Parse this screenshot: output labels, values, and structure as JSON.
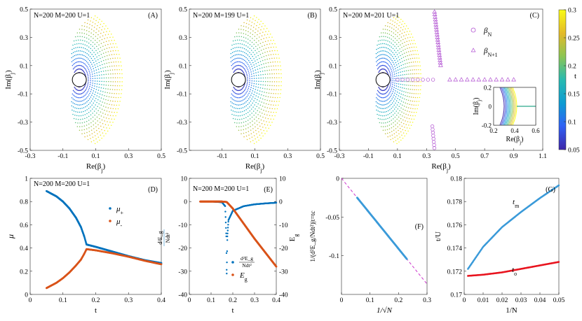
{
  "colorbar": {
    "label": "t",
    "ticks": [
      "0.3",
      "0.25",
      "0.2",
      "0.15",
      "0.1",
      "0.05"
    ],
    "range": [
      0.05,
      0.3
    ],
    "stops": [
      "#3e26a8",
      "#2f61f5",
      "#0d9bd2",
      "#28bab0",
      "#8dc552",
      "#e3b92a",
      "#f9fb15"
    ]
  },
  "chart_data": [
    {
      "id": "A",
      "type": "scatter",
      "title": "N=200  M=200  U=1",
      "panel_label": "(A)",
      "xlabel": "Re(β_j)",
      "ylabel": "Im(β_j)",
      "xlim": [
        -0.3,
        0.5
      ],
      "ylim": [
        -0.5,
        0.5
      ],
      "xticks": [
        "-0.3",
        "-0.1",
        "0.1",
        "0.3",
        "0.5"
      ],
      "yticks": [
        "0.5",
        "0.3",
        "0.1",
        "-0.1",
        "-0.3",
        "-0.5"
      ],
      "description_series": "ring of points for each t in 0.05..0.3; inner circle radius ~0.03"
    },
    {
      "id": "B",
      "type": "scatter",
      "title": "N=200  M=199  U=1",
      "panel_label": "(B)",
      "xlabel": "Re(β_j)",
      "ylabel": "Im(β_j)",
      "xlim": [
        -0.3,
        0.5
      ],
      "ylim": [
        -0.5,
        0.5
      ],
      "xticks": [
        "-0.1",
        "0.1",
        "0.3",
        "0.5"
      ],
      "yticks": [
        "0.5",
        "0.3",
        "0.1",
        "-0.1",
        "-0.3",
        "-0.5"
      ]
    },
    {
      "id": "C",
      "type": "scatter",
      "title": "N=200  M=201  U=1",
      "panel_label": "(C)",
      "xlabel": "Re(β_j)",
      "ylabel": "Im(β_j)",
      "xlim": [
        -0.3,
        1.1
      ],
      "ylim": [
        -0.5,
        0.5
      ],
      "xticks": [
        "-0.3",
        "-0.1",
        "0.1",
        "0.3",
        "0.5",
        "0.7",
        "0.9",
        "1.1"
      ],
      "yticks": [
        "0.5",
        "0.3",
        "0.1",
        "-0.1",
        "-0.3",
        "-0.5"
      ],
      "legend": [
        "β_N",
        "β_N+1"
      ],
      "legend_position": "top-right",
      "inset": {
        "xlabel": "Re(β_j)",
        "ylabel": "Im(β_j)",
        "xlim": [
          0.2,
          0.6
        ],
        "ylim": [
          -0.2,
          0.2
        ],
        "xticks": [
          "0.2",
          "0.4",
          "0.6"
        ],
        "yticks": [
          "0.2",
          "0",
          "-0.2"
        ]
      }
    },
    {
      "id": "D",
      "type": "line",
      "title": "N=200  M=200  U=1",
      "panel_label": "(D)",
      "xlabel": "t",
      "ylabel": "μ",
      "xlim": [
        0,
        0.4
      ],
      "ylim": [
        0,
        1
      ],
      "xticks": [
        "0",
        "0.1",
        "0.2",
        "0.3",
        "0.4"
      ],
      "yticks": [
        "1",
        "0.8",
        "0.6",
        "0.4",
        "0.2",
        "0"
      ],
      "legend": [
        "μ+",
        "μ-"
      ],
      "series": [
        {
          "name": "μ+",
          "color": "#0072bd",
          "x": [
            0.05,
            0.08,
            0.1,
            0.12,
            0.14,
            0.155,
            0.165,
            0.172,
            0.2,
            0.25,
            0.3,
            0.35,
            0.4
          ],
          "y": [
            0.89,
            0.845,
            0.8,
            0.74,
            0.66,
            0.58,
            0.5,
            0.43,
            0.41,
            0.37,
            0.33,
            0.295,
            0.27
          ]
        },
        {
          "name": "μ-",
          "color": "#d95319",
          "x": [
            0.05,
            0.08,
            0.1,
            0.12,
            0.14,
            0.155,
            0.165,
            0.172,
            0.2,
            0.25,
            0.3,
            0.35,
            0.4
          ],
          "y": [
            0.055,
            0.1,
            0.14,
            0.19,
            0.25,
            0.3,
            0.35,
            0.39,
            0.38,
            0.355,
            0.325,
            0.29,
            0.26
          ]
        }
      ]
    },
    {
      "id": "E",
      "type": "line",
      "title": "N=200  M=200  U=1",
      "panel_label": "(E)",
      "xlabel": "t",
      "ylabel_left": "d²E_g/Ndt²",
      "ylabel_right": "E_g",
      "xlim": [
        0,
        0.4
      ],
      "ylim_left": [
        -40,
        10
      ],
      "ylim_right": [
        -40,
        10
      ],
      "xticks": [
        "0",
        "0.1",
        "0.2",
        "0.3",
        "0.4"
      ],
      "yticks_left": [
        "10",
        "0",
        "-10",
        "-20",
        "-30",
        "-40"
      ],
      "yticks_right": [
        "10",
        "0",
        "-10",
        "-20",
        "-30",
        "-40"
      ],
      "legend": [
        "d²E_g/Ndt²",
        "E_g"
      ],
      "series": [
        {
          "name": "d²E_g/Ndt²",
          "color": "#0072bd",
          "x": [
            0.05,
            0.1,
            0.15,
            0.165,
            0.17,
            0.172,
            0.175,
            0.18,
            0.2,
            0.25,
            0.3,
            0.35,
            0.4
          ],
          "y": [
            0,
            0,
            -0.3,
            -2,
            -15,
            -31,
            -15,
            -8,
            -4,
            -2,
            -1.2,
            -0.8,
            -0.5
          ]
        },
        {
          "name": "E_g",
          "color": "#d95319",
          "x": [
            0.05,
            0.1,
            0.15,
            0.172,
            0.2,
            0.25,
            0.3,
            0.35,
            0.4
          ],
          "y": [
            0,
            0,
            0,
            -0.2,
            -3,
            -9.5,
            -16,
            -22,
            -28
          ]
        }
      ]
    },
    {
      "id": "F",
      "type": "scatter",
      "panel_label": "(F)",
      "xlabel": "1/√N",
      "ylabel": "1/(d²E_g/Ndt²)|t=tc",
      "xlim": [
        0,
        0.3
      ],
      "ylim": [
        -0.15,
        0
      ],
      "xticks": [
        "0",
        "0.1",
        "0.2",
        "0.3"
      ],
      "yticks": [
        "0",
        "-0.05",
        "-0.1"
      ],
      "series": [
        {
          "name": "data",
          "color": "#3a9ad9",
          "x_range": [
            0.055,
            0.23
          ],
          "slope": -0.455
        },
        {
          "name": "fit",
          "color": "#cc33cc",
          "style": "dashed",
          "x": [
            0,
            0.3
          ],
          "y": [
            0,
            -0.1365
          ]
        }
      ]
    },
    {
      "id": "G",
      "type": "scatter",
      "panel_label": "(G)",
      "xlabel": "1/N",
      "ylabel": "t/U",
      "xlim": [
        0,
        0.05
      ],
      "ylim": [
        0.17,
        0.18
      ],
      "xticks": [
        "0",
        "0.01",
        "0.02",
        "0.03",
        "0.04",
        "0.05"
      ],
      "yticks": [
        "0.18",
        "0.178",
        "0.176",
        "0.174",
        "0.172",
        "0.17"
      ],
      "annotations": [
        "t_m",
        "t_o"
      ],
      "series": [
        {
          "name": "t_m",
          "color": "#3a9ad9",
          "x": [
            0.002,
            0.01,
            0.02,
            0.03,
            0.04,
            0.05
          ],
          "y": [
            0.1722,
            0.1741,
            0.1758,
            0.1771,
            0.1783,
            0.1794
          ]
        },
        {
          "name": "t_o",
          "color": "#e8141f",
          "x": [
            0.002,
            0.01,
            0.02,
            0.03,
            0.04,
            0.05
          ],
          "y": [
            0.1716,
            0.1717,
            0.1719,
            0.1722,
            0.1725,
            0.1728
          ]
        }
      ]
    }
  ]
}
